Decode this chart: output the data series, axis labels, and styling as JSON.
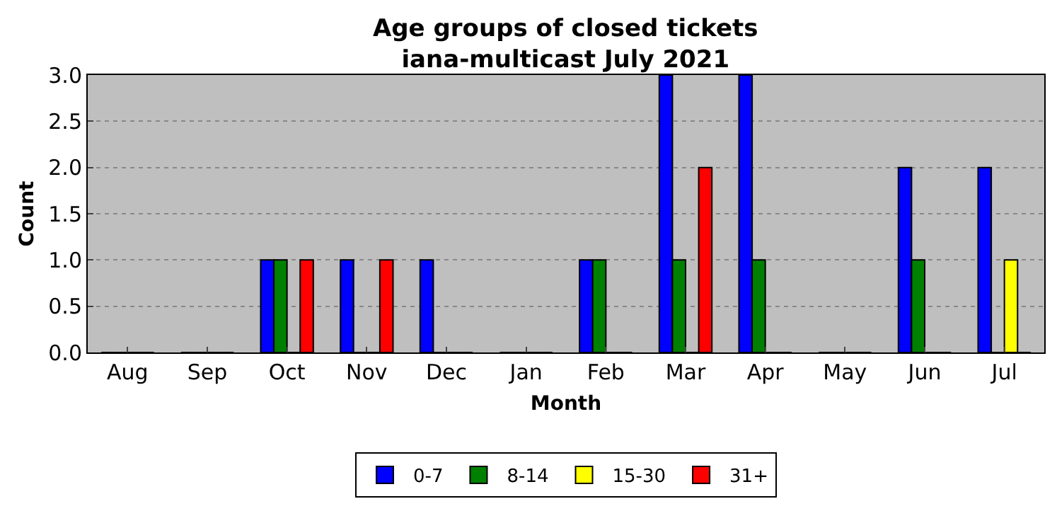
{
  "chart_data": {
    "type": "bar",
    "title": "Age groups of closed tickets",
    "subtitle": "iana-multicast July 2021",
    "xlabel": "Month",
    "ylabel": "Count",
    "categories": [
      "Aug",
      "Sep",
      "Oct",
      "Nov",
      "Dec",
      "Jan",
      "Feb",
      "Mar",
      "Apr",
      "May",
      "Jun",
      "Jul"
    ],
    "series": [
      {
        "name": "0-7",
        "color": "#0000ff",
        "values": [
          0,
          0,
          1,
          1,
          1,
          0,
          1,
          3,
          3,
          0,
          2,
          2
        ]
      },
      {
        "name": "8-14",
        "color": "#008000",
        "values": [
          0,
          0,
          1,
          0,
          0,
          0,
          1,
          1,
          1,
          0,
          1,
          0
        ]
      },
      {
        "name": "15-30",
        "color": "#ffff00",
        "values": [
          0,
          0,
          0,
          0,
          0,
          0,
          0,
          0,
          0,
          0,
          0,
          1
        ]
      },
      {
        "name": "31+",
        "color": "#ff0000",
        "values": [
          0,
          0,
          1,
          1,
          0,
          0,
          0,
          2,
          0,
          0,
          0,
          0
        ]
      }
    ],
    "ylim": [
      0,
      3
    ],
    "yticks": [
      {
        "value": 0,
        "label": "0.0"
      },
      {
        "value": 0.5,
        "label": "0.5"
      },
      {
        "value": 1,
        "label": "1.0"
      },
      {
        "value": 1.5,
        "label": "1.5"
      },
      {
        "value": 2,
        "label": "2.0"
      },
      {
        "value": 2.5,
        "label": "2.5"
      },
      {
        "value": 3,
        "label": "3.0"
      }
    ],
    "grid": "y",
    "legend": "bottom"
  }
}
